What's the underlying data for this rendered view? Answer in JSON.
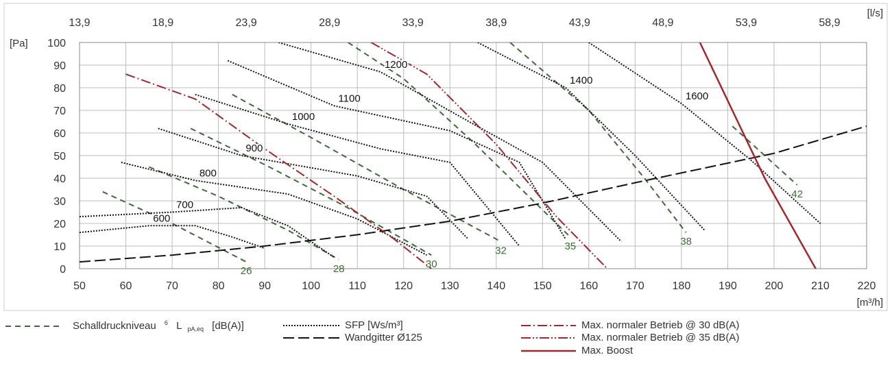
{
  "chart_data": {
    "type": "line",
    "x_axis": {
      "unit": "[m³/h]",
      "min": 50,
      "max": 220,
      "ticks": [
        50,
        60,
        70,
        80,
        90,
        100,
        110,
        120,
        130,
        140,
        150,
        160,
        170,
        180,
        190,
        200,
        210,
        220
      ]
    },
    "x_top_axis": {
      "unit": "[l/s]",
      "ticks": [
        "13,9",
        "18,9",
        "23,9",
        "28,9",
        "33,9",
        "38,9",
        "43,9",
        "48,9",
        "53,9",
        "58,9"
      ],
      "tick_positions_m3h": [
        50,
        68,
        86,
        104,
        122,
        140,
        158,
        176,
        194,
        212
      ]
    },
    "y_axis": {
      "unit": "[Pa]",
      "min": 0,
      "max": 100,
      "ticks": [
        0,
        10,
        20,
        30,
        40,
        50,
        60,
        70,
        80,
        90,
        100
      ]
    },
    "grid": true,
    "colors": {
      "sound": "#3a6b35",
      "sfp": "#111111",
      "wall": "#111111",
      "max30": "#a3262b",
      "max35": "#a3262b",
      "boost": "#a3262b",
      "grid": "#bbbbbb",
      "axis_text": "#333333"
    },
    "series": [
      {
        "group": "sound",
        "label": "26",
        "points": [
          [
            55,
            34
          ],
          [
            70,
            20
          ],
          [
            86,
            3
          ]
        ]
      },
      {
        "group": "sound",
        "label": "28",
        "points": [
          [
            65,
            45
          ],
          [
            80,
            32
          ],
          [
            95,
            17
          ],
          [
            106,
            4
          ]
        ]
      },
      {
        "group": "sound",
        "label": "30",
        "points": [
          [
            74,
            62
          ],
          [
            90,
            46
          ],
          [
            107,
            28
          ],
          [
            126,
            6
          ]
        ]
      },
      {
        "group": "sound",
        "label": "32",
        "points": [
          [
            83,
            77
          ],
          [
            100,
            58
          ],
          [
            120,
            35
          ],
          [
            141,
            12
          ]
        ]
      },
      {
        "group": "sound",
        "label": "35",
        "points": [
          [
            108,
            100
          ],
          [
            120,
            84
          ],
          [
            135,
            56
          ],
          [
            156,
            14
          ]
        ]
      },
      {
        "group": "sound",
        "label": "38",
        "points": [
          [
            143,
            100
          ],
          [
            160,
            70
          ],
          [
            172,
            40
          ],
          [
            181,
            16
          ]
        ]
      },
      {
        "group": "sound",
        "label": "42",
        "points": [
          [
            191,
            63
          ],
          [
            205,
            37
          ]
        ]
      },
      {
        "group": "sfp",
        "label": "600",
        "points": [
          [
            50,
            16
          ],
          [
            65,
            19
          ],
          [
            75,
            19
          ],
          [
            83,
            14
          ],
          [
            90,
            9
          ]
        ]
      },
      {
        "group": "sfp",
        "label": "700",
        "points": [
          [
            50,
            23
          ],
          [
            70,
            25
          ],
          [
            85,
            27
          ],
          [
            95,
            19
          ],
          [
            105,
            5
          ]
        ]
      },
      {
        "group": "sfp",
        "label": "800",
        "points": [
          [
            59,
            47
          ],
          [
            75,
            39
          ],
          [
            95,
            33
          ],
          [
            110,
            22
          ],
          [
            125,
            6
          ]
        ]
      },
      {
        "group": "sfp",
        "label": "900",
        "points": [
          [
            67,
            62
          ],
          [
            85,
            50
          ],
          [
            110,
            41
          ],
          [
            125,
            32
          ],
          [
            134,
            13
          ]
        ]
      },
      {
        "group": "sfp",
        "label": "1000",
        "points": [
          [
            75,
            77
          ],
          [
            95,
            64
          ],
          [
            115,
            53
          ],
          [
            130,
            47
          ],
          [
            145,
            10
          ]
        ]
      },
      {
        "group": "sfp",
        "label": "1100",
        "points": [
          [
            82,
            92
          ],
          [
            105,
            72
          ],
          [
            130,
            61
          ],
          [
            145,
            47
          ],
          [
            155,
            13
          ]
        ]
      },
      {
        "group": "sfp",
        "label": "1200",
        "points": [
          [
            93,
            100
          ],
          [
            115,
            87
          ],
          [
            135,
            64
          ],
          [
            150,
            47
          ],
          [
            167,
            12
          ]
        ]
      },
      {
        "group": "sfp",
        "label": "1400",
        "points": [
          [
            136,
            100
          ],
          [
            155,
            80
          ],
          [
            170,
            50
          ],
          [
            185,
            17
          ]
        ]
      },
      {
        "group": "sfp",
        "label": "1600",
        "points": [
          [
            160,
            100
          ],
          [
            180,
            73
          ],
          [
            195,
            48
          ],
          [
            210,
            20
          ]
        ]
      },
      {
        "group": "wall",
        "label": "",
        "points": [
          [
            50,
            3
          ],
          [
            70,
            6
          ],
          [
            90,
            10
          ],
          [
            110,
            15
          ],
          [
            130,
            21
          ],
          [
            150,
            29
          ],
          [
            170,
            38
          ],
          [
            200,
            51
          ],
          [
            220,
            63
          ]
        ]
      },
      {
        "group": "max30",
        "label": "",
        "points": [
          [
            60,
            86
          ],
          [
            75,
            75
          ],
          [
            90,
            53
          ],
          [
            105,
            32
          ],
          [
            118,
            13
          ],
          [
            126,
            0
          ]
        ]
      },
      {
        "group": "max35",
        "label": "",
        "points": [
          [
            113,
            100
          ],
          [
            125,
            86
          ],
          [
            140,
            55
          ],
          [
            153,
            23
          ],
          [
            164,
            0
          ]
        ]
      },
      {
        "group": "boost",
        "label": "",
        "points": [
          [
            184,
            100
          ],
          [
            198,
            40
          ],
          [
            209,
            0
          ]
        ]
      }
    ]
  },
  "legend": {
    "sound": {
      "text": "Schalldruckniveau",
      "sup": "6",
      "sym": "L",
      "sub": "pA,eq",
      "unit": "[dB(A)]"
    },
    "sfp": "SFP [Ws/m³]",
    "wall": "Wandgitter Ø125",
    "max30": "Max. normaler Betrieb @ 30 dB(A)",
    "max35": "Max. normaler Betrieb @ 35 dB(A)",
    "boost": "Max. Boost"
  }
}
